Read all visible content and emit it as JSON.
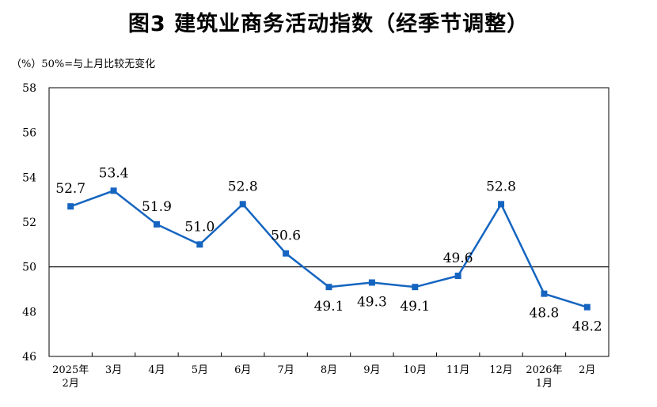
{
  "chart_data": {
    "type": "line",
    "title": "图3  建筑业商务活动指数（经季节调整）",
    "ylabel": "（%）50%=与上月比较无变化",
    "ylim": [
      46,
      58
    ],
    "yticks": [
      46,
      48,
      50,
      52,
      54,
      56,
      58
    ],
    "reference_line": 50,
    "categories": [
      [
        "2025年",
        "2月"
      ],
      [
        "3月"
      ],
      [
        "4月"
      ],
      [
        "5月"
      ],
      [
        "6月"
      ],
      [
        "7月"
      ],
      [
        "8月"
      ],
      [
        "9月"
      ],
      [
        "10月"
      ],
      [
        "11月"
      ],
      [
        "12月"
      ],
      [
        "2026年",
        "1月"
      ],
      [
        "2月"
      ]
    ],
    "values": [
      52.7,
      53.4,
      51.9,
      51.0,
      52.8,
      50.6,
      49.1,
      49.3,
      49.1,
      49.6,
      52.8,
      48.8,
      48.2
    ],
    "data_labels": [
      "52.7",
      "53.4",
      "51.9",
      "51.0",
      "52.8",
      "50.6",
      "49.1",
      "49.3",
      "49.1",
      "49.6",
      "52.8",
      "48.8",
      "48.2"
    ],
    "label_position": [
      "above",
      "above",
      "above",
      "above",
      "above",
      "above",
      "below",
      "below",
      "below",
      "above",
      "above",
      "below",
      "below"
    ],
    "series_color": "#1565C0",
    "grid": false
  }
}
